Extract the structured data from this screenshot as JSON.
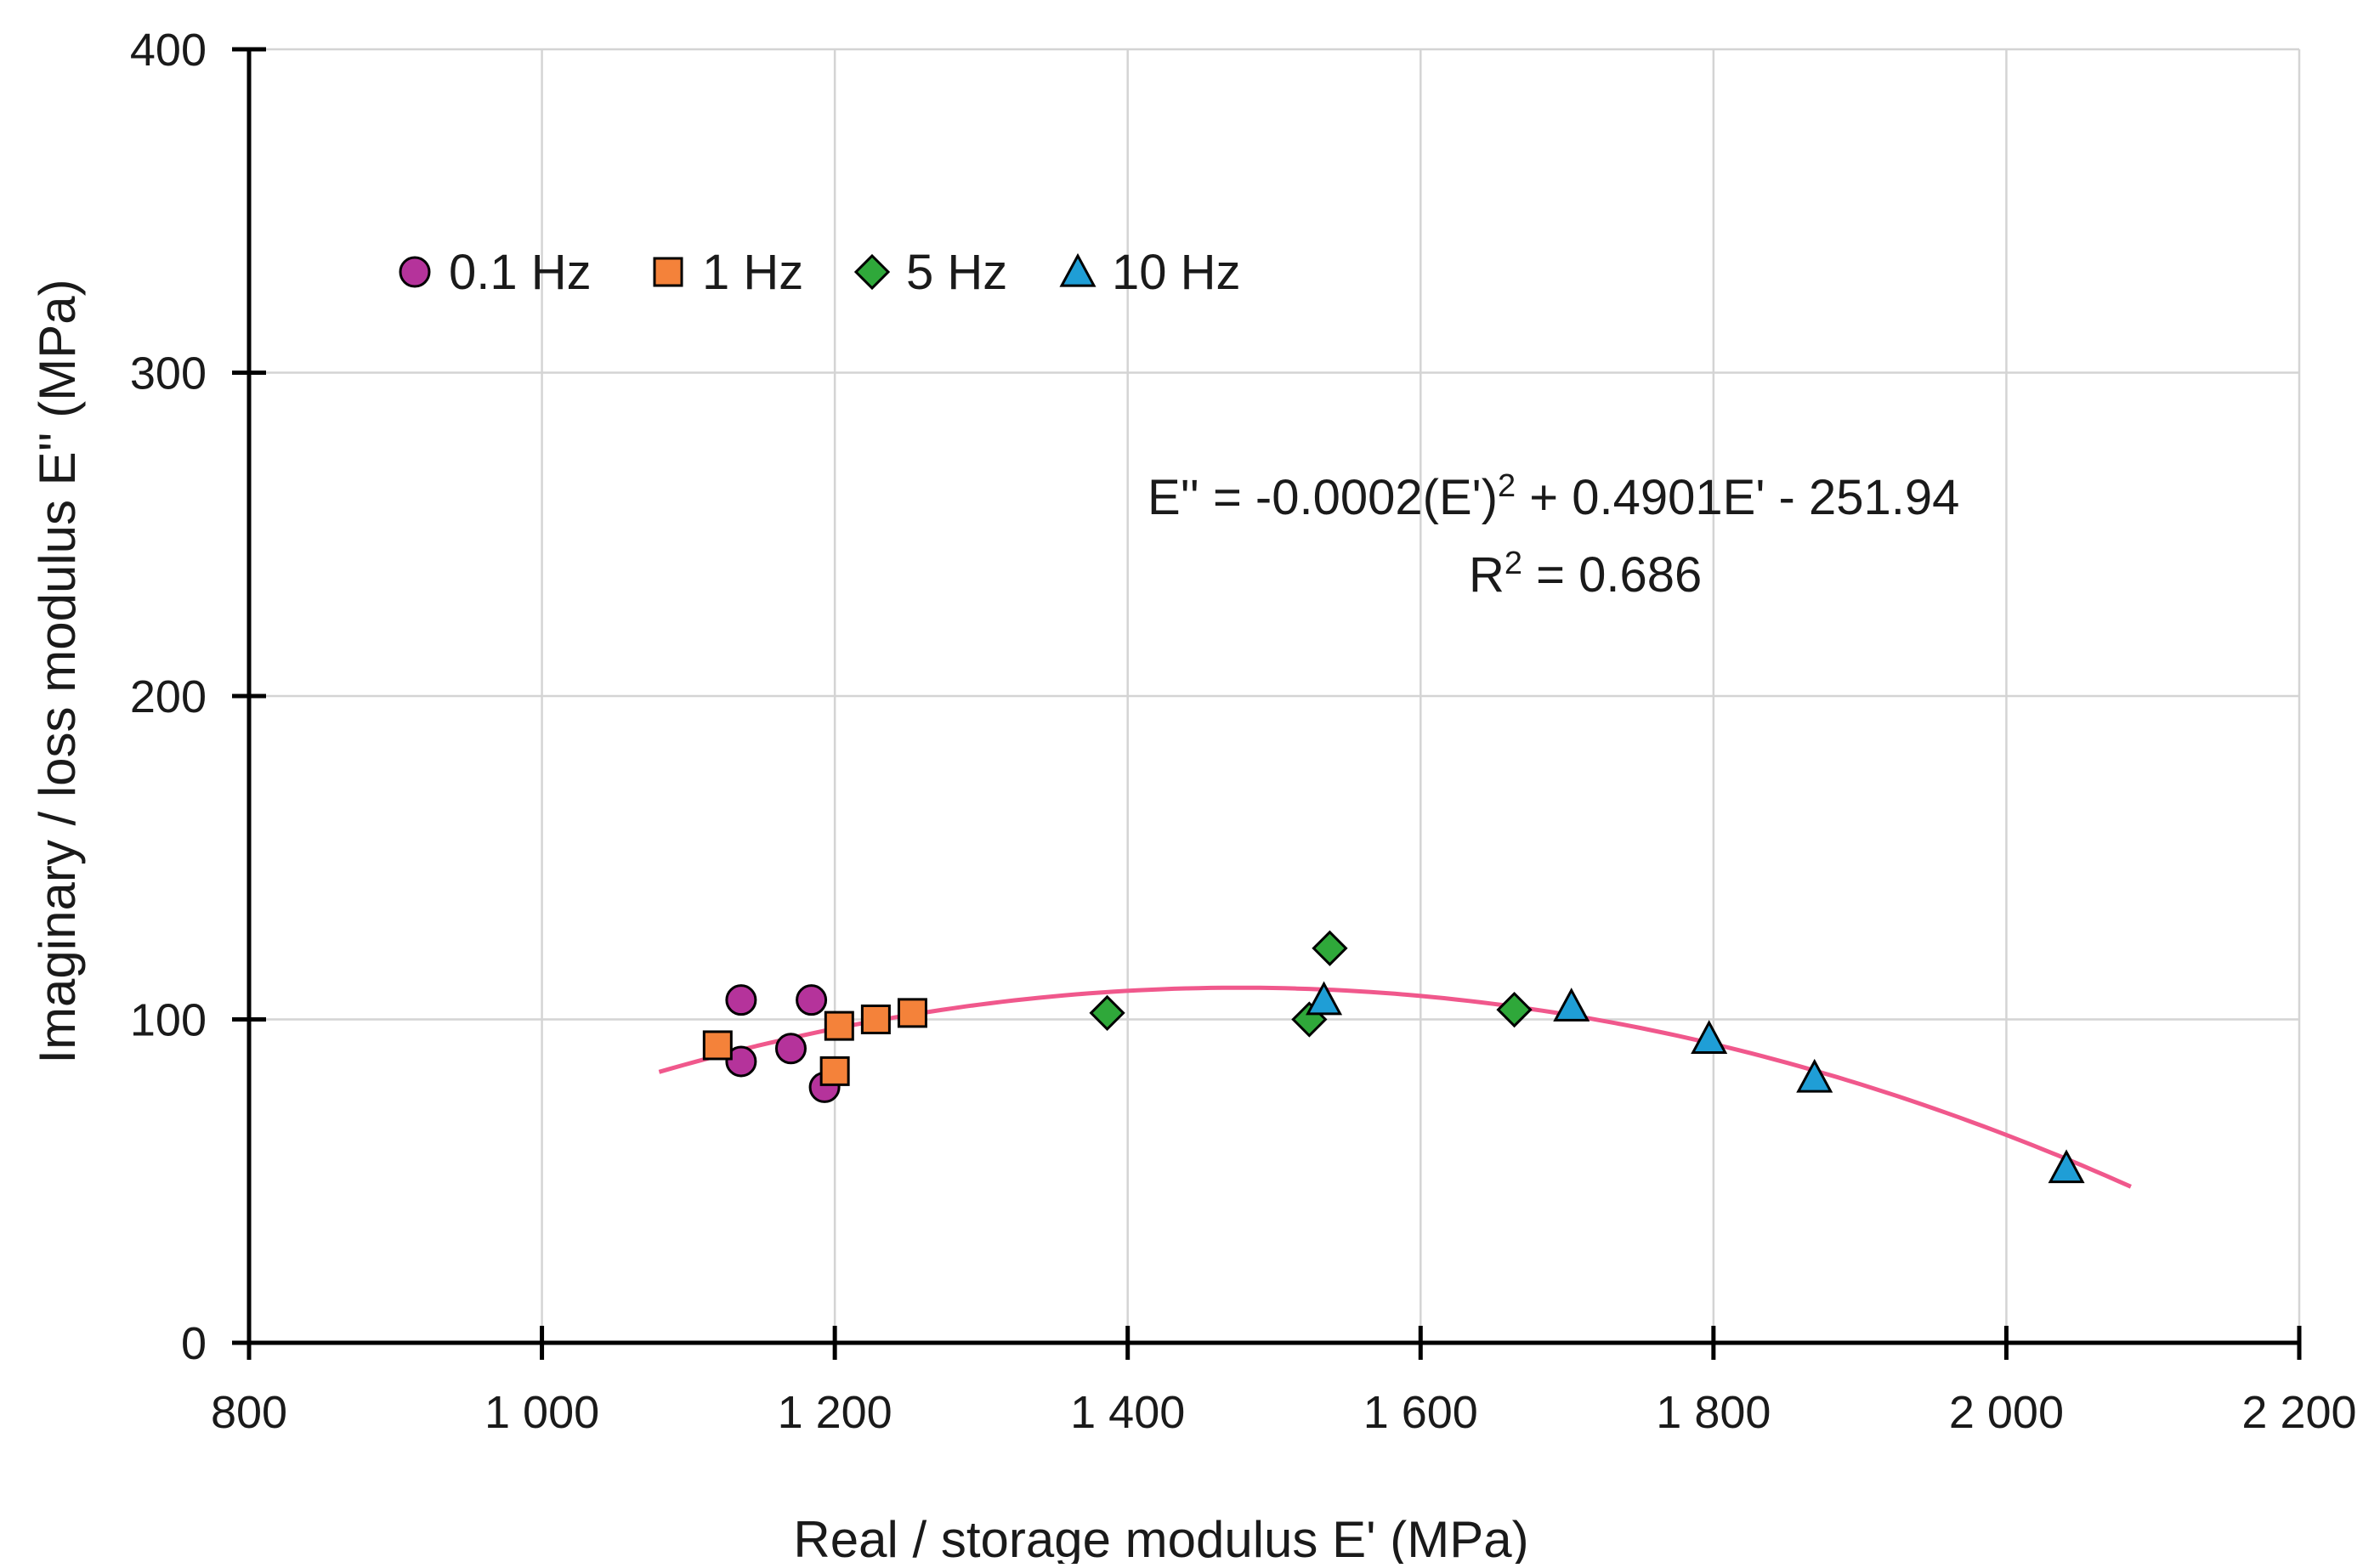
{
  "chart_data": {
    "type": "scatter",
    "xlabel": "Real / storage modulus  E' (MPa)",
    "ylabel": "Imaginary / loss modulus  E''  (MPa)",
    "xlim": [
      800,
      2200
    ],
    "ylim": [
      0,
      400
    ],
    "x_ticks": [
      800,
      1000,
      1200,
      1400,
      1600,
      1800,
      2000,
      2200
    ],
    "x_tick_labels": [
      "800",
      "1 000",
      "1 200",
      "1 400",
      "1 600",
      "1 800",
      "2 000",
      "2 200"
    ],
    "y_ticks": [
      0,
      100,
      200,
      300,
      400
    ],
    "y_tick_labels": [
      "0",
      "100",
      "200",
      "300",
      "400"
    ],
    "grid": true,
    "legend_position": "top-left",
    "series": [
      {
        "name": "0.1 Hz",
        "marker": "circle",
        "color": "#b5339b",
        "points": [
          [
            1136,
            106
          ],
          [
            1136,
            87
          ],
          [
            1170,
            91
          ],
          [
            1184,
            106
          ],
          [
            1193,
            79
          ]
        ]
      },
      {
        "name": "1 Hz",
        "marker": "square",
        "color": "#f4823a",
        "points": [
          [
            1120,
            92
          ],
          [
            1200,
            84
          ],
          [
            1203,
            98
          ],
          [
            1228,
            100
          ],
          [
            1253,
            102
          ]
        ]
      },
      {
        "name": "5 Hz",
        "marker": "diamond",
        "color": "#2fa83a",
        "points": [
          [
            1386,
            102
          ],
          [
            1524,
            100
          ],
          [
            1538,
            122
          ],
          [
            1664,
            103
          ]
        ]
      },
      {
        "name": "10 Hz",
        "marker": "triangle",
        "color": "#1f9ed6",
        "points": [
          [
            1534,
            106
          ],
          [
            1703,
            104
          ],
          [
            1797,
            94
          ],
          [
            1869,
            82
          ],
          [
            2041,
            54
          ]
        ]
      }
    ],
    "trendline": {
      "type": "polynomial",
      "color": "#f0588c",
      "coefficients": {
        "a": -0.000166,
        "b": 0.4901,
        "c": -251.94
      },
      "x_range": [
        1080,
        2085
      ]
    },
    "annotations": {
      "equation_prefix": "E'' = -0.0002(E')",
      "equation_exp": "2",
      "equation_suffix": " + 0.4901E' - 251.94",
      "r2_prefix": "R",
      "r2_exp": "2",
      "r2_suffix": " = 0.686"
    }
  }
}
